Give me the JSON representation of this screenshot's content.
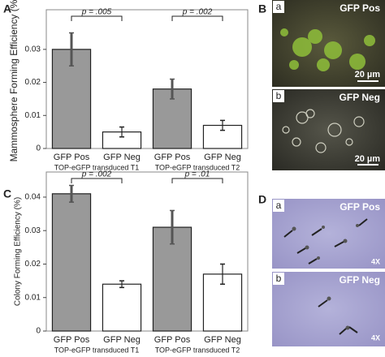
{
  "chart_data": [
    {
      "type": "bar",
      "panel": "A",
      "y_label": "Mammosphere Forming Efficiency (%)",
      "categories": [
        "GFP Pos",
        "GFP Neg",
        "GFP Pos",
        "GFP Neg"
      ],
      "groups": [
        "TOP-eGFP transduced T1",
        "TOP-eGFP transduced T2"
      ],
      "values": [
        0.03,
        0.005,
        0.018,
        0.007
      ],
      "errors": [
        0.005,
        0.0015,
        0.003,
        0.0015
      ],
      "colors": [
        "#999999",
        "#ffffff",
        "#999999",
        "#ffffff"
      ],
      "annotations": [
        "p = .005",
        "p = .002"
      ],
      "ylim": [
        0,
        0.042
      ],
      "yticks": [
        0,
        0.01,
        0.02,
        0.03
      ]
    },
    {
      "type": "bar",
      "panel": "C",
      "y_label": "Colony Forming Efficiency (%)",
      "categories": [
        "GFP Pos",
        "GFP Neg",
        "GFP Pos",
        "GFP Neg"
      ],
      "groups": [
        "TOP-eGFP transduced T1",
        "TOP-eGFP transduced T2"
      ],
      "values": [
        0.041,
        0.014,
        0.031,
        0.017
      ],
      "errors": [
        0.0025,
        0.001,
        0.005,
        0.003
      ],
      "colors": [
        "#999999",
        "#ffffff",
        "#999999",
        "#ffffff"
      ],
      "annotations": [
        "p = .002",
        "p = .01"
      ],
      "ylim": [
        0,
        0.0475
      ],
      "yticks": [
        0,
        0.01,
        0.02,
        0.03,
        0.04
      ]
    }
  ],
  "panels": [
    {
      "label": "B",
      "images": [
        {
          "label": "a",
          "title": "GFP Pos",
          "scale": "20 µm"
        },
        {
          "label": "b",
          "title": "GFP Neg",
          "scale": "20 µm"
        }
      ]
    },
    {
      "label": "D",
      "images": [
        {
          "label": "a",
          "title": "GFP Pos",
          "scale": "4X"
        },
        {
          "label": "b",
          "title": "GFP Neg",
          "scale": "4X"
        }
      ]
    }
  ]
}
